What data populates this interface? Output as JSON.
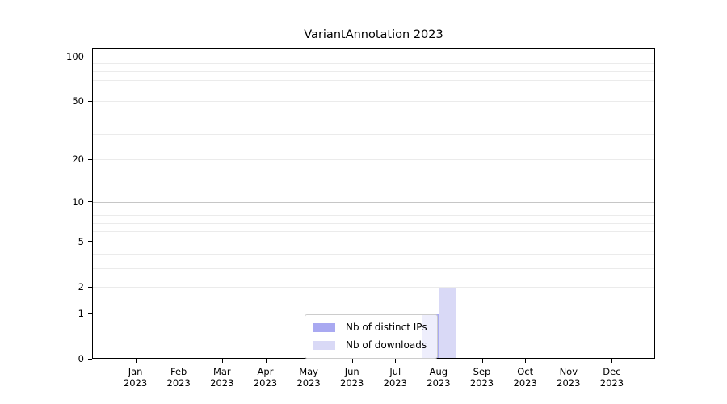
{
  "title": "VariantAnnotation 2023",
  "chart_data": {
    "type": "bar",
    "title": "VariantAnnotation 2023",
    "categories": [
      "Jan",
      "Feb",
      "Mar",
      "Apr",
      "May",
      "Jun",
      "Jul",
      "Aug",
      "Sep",
      "Oct",
      "Nov",
      "Dec"
    ],
    "category_year": "2023",
    "series": [
      {
        "name": "Nb of distinct IPs",
        "color": "#a9a9f1",
        "values": [
          0,
          0,
          0,
          0,
          0,
          0,
          0,
          1,
          0,
          0,
          0,
          0
        ]
      },
      {
        "name": "Nb of downloads",
        "color": "#d9d9f6",
        "values": [
          0,
          0,
          0,
          0,
          0,
          0,
          0,
          2,
          0,
          0,
          0,
          0
        ]
      }
    ],
    "xlabel": "",
    "ylabel": "",
    "ylim": [
      0,
      100
    ],
    "y_scale": "log1p",
    "y_tick_values": [
      0,
      1,
      2,
      5,
      10,
      20,
      50,
      100
    ],
    "grid": true,
    "legend_position": "inside-bottom-center"
  },
  "colors": {
    "major_grid": "#c6c6c6",
    "minor_grid": "#ebebeb",
    "spine": "#000000",
    "background": "#ffffff"
  }
}
